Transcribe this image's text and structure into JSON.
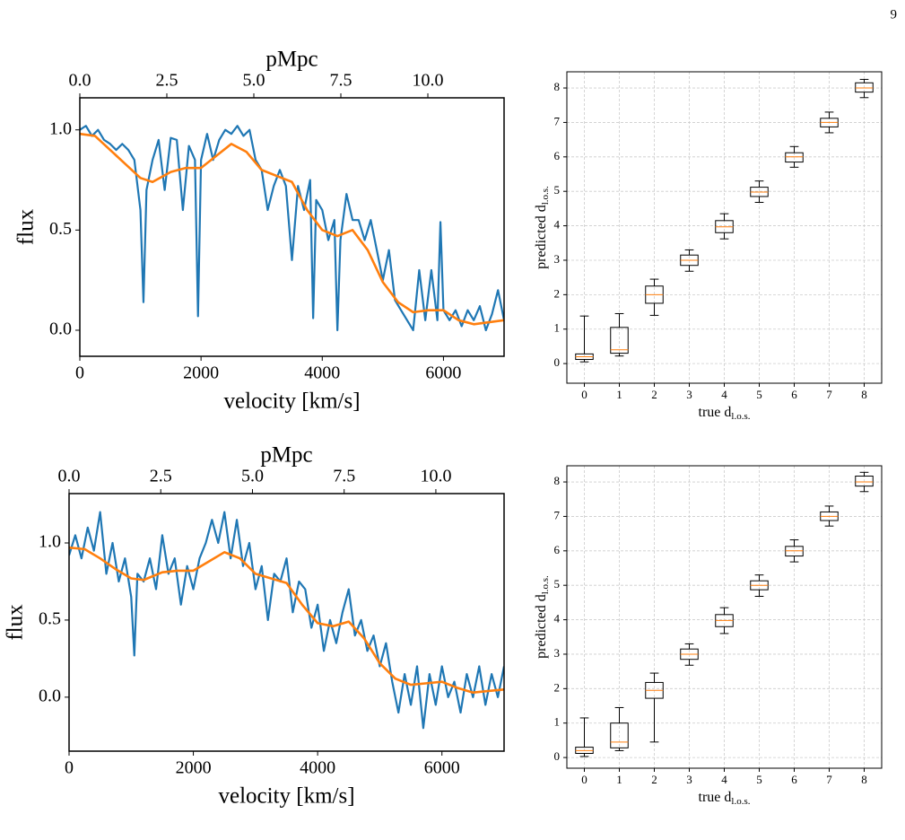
{
  "page_number": "9",
  "chart_data": [
    {
      "type": "line",
      "xlabel": "velocity [km/s]",
      "ylabel": "flux",
      "x2label": "pMpc",
      "xlim": [
        0,
        7000
      ],
      "ylim": [
        -0.13,
        1.16
      ],
      "x2lim": [
        0,
        12.19
      ],
      "xticks": [
        0,
        2000,
        4000,
        6000
      ],
      "yticks": [
        {
          "value": 0,
          "label": "0.0"
        },
        {
          "value": 0.5,
          "label": "0.5"
        },
        {
          "value": 1,
          "label": "1.0"
        }
      ],
      "x2ticks": [
        {
          "value": 0,
          "label": "0.0"
        },
        {
          "value": 2.5,
          "label": "2.5"
        },
        {
          "value": 5,
          "label": "5.0"
        },
        {
          "value": 7.5,
          "label": "7.5"
        },
        {
          "value": 10,
          "label": "10.0"
        }
      ],
      "series": [
        {
          "color": "#1f77b4",
          "x": [
            0,
            100,
            200,
            300,
            400,
            500,
            600,
            700,
            800,
            900,
            1000,
            1050,
            1100,
            1200,
            1300,
            1400,
            1500,
            1600,
            1700,
            1800,
            1900,
            1950,
            2000,
            2100,
            2200,
            2300,
            2400,
            2500,
            2600,
            2700,
            2800,
            2900,
            3000,
            3100,
            3200,
            3300,
            3400,
            3500,
            3600,
            3700,
            3800,
            3850,
            3900,
            4000,
            4100,
            4200,
            4250,
            4300,
            4400,
            4500,
            4600,
            4700,
            4800,
            4900,
            5000,
            5100,
            5200,
            5300,
            5400,
            5500,
            5600,
            5700,
            5800,
            5900,
            5950,
            6000,
            6100,
            6200,
            6300,
            6400,
            6500,
            6600,
            6700,
            6800,
            6900,
            7000
          ],
          "values": [
            1.0,
            1.02,
            0.97,
            1.0,
            0.95,
            0.93,
            0.9,
            0.93,
            0.9,
            0.85,
            0.6,
            0.14,
            0.7,
            0.85,
            0.95,
            0.7,
            0.96,
            0.95,
            0.6,
            0.92,
            0.85,
            0.07,
            0.85,
            0.98,
            0.85,
            0.95,
            1.0,
            0.98,
            1.02,
            0.97,
            1.0,
            0.85,
            0.8,
            0.6,
            0.72,
            0.8,
            0.72,
            0.35,
            0.72,
            0.6,
            0.75,
            0.06,
            0.65,
            0.6,
            0.45,
            0.55,
            0.0,
            0.45,
            0.68,
            0.55,
            0.55,
            0.45,
            0.55,
            0.4,
            0.25,
            0.4,
            0.15,
            0.1,
            0.05,
            0.0,
            0.3,
            0.05,
            0.3,
            0.05,
            0.54,
            0.1,
            0.05,
            0.1,
            0.02,
            0.1,
            0.05,
            0.12,
            0.0,
            0.08,
            0.2,
            0.05
          ]
        },
        {
          "color": "#ff7f0e",
          "x": [
            0,
            250,
            500,
            750,
            1000,
            1200,
            1500,
            1750,
            2000,
            2250,
            2500,
            2750,
            3000,
            3250,
            3500,
            3750,
            4000,
            4250,
            4500,
            4750,
            5000,
            5250,
            5500,
            5750,
            6000,
            6250,
            6500,
            6750,
            7000
          ],
          "values": [
            0.98,
            0.97,
            0.9,
            0.83,
            0.76,
            0.74,
            0.79,
            0.81,
            0.81,
            0.87,
            0.93,
            0.89,
            0.8,
            0.77,
            0.74,
            0.6,
            0.5,
            0.47,
            0.5,
            0.4,
            0.24,
            0.14,
            0.09,
            0.1,
            0.1,
            0.05,
            0.03,
            0.04,
            0.05
          ]
        }
      ]
    },
    {
      "type": "box",
      "xlabel": "true d",
      "xlabel_sub": "l.o.s.",
      "ylabel": "predicted d",
      "ylabel_sub": "l.o.s.",
      "categories": [
        "0",
        "1",
        "2",
        "3",
        "4",
        "5",
        "6",
        "7",
        "8"
      ],
      "ylim": [
        -0.57,
        8.47
      ],
      "yticks": [
        0,
        1,
        2,
        3,
        4,
        5,
        6,
        7,
        8
      ],
      "grid": true,
      "median_color": "#ff7f0e",
      "boxes": [
        {
          "low": 0.05,
          "q1": 0.12,
          "median": 0.2,
          "q3": 0.28,
          "high": 1.38
        },
        {
          "low": 0.22,
          "q1": 0.3,
          "median": 0.4,
          "q3": 1.05,
          "high": 1.45
        },
        {
          "low": 1.4,
          "q1": 1.75,
          "median": 2.0,
          "q3": 2.25,
          "high": 2.45
        },
        {
          "low": 2.68,
          "q1": 2.85,
          "median": 3.0,
          "q3": 3.15,
          "high": 3.3
        },
        {
          "low": 3.62,
          "q1": 3.8,
          "median": 3.97,
          "q3": 4.15,
          "high": 4.35
        },
        {
          "low": 4.68,
          "q1": 4.85,
          "median": 4.98,
          "q3": 5.12,
          "high": 5.3
        },
        {
          "low": 5.7,
          "q1": 5.85,
          "median": 6.0,
          "q3": 6.12,
          "high": 6.3
        },
        {
          "low": 6.7,
          "q1": 6.87,
          "median": 7.0,
          "q3": 7.12,
          "high": 7.3
        },
        {
          "low": 7.72,
          "q1": 7.88,
          "median": 8.0,
          "q3": 8.15,
          "high": 8.25
        }
      ]
    },
    {
      "type": "line",
      "xlabel": "velocity [km/s]",
      "ylabel": "flux",
      "x2label": "pMpc",
      "xlim": [
        0,
        7000
      ],
      "ylim": [
        -0.35,
        1.32
      ],
      "x2lim": [
        0,
        11.86
      ],
      "xticks": [
        0,
        2000,
        4000,
        6000
      ],
      "yticks": [
        {
          "value": 0,
          "label": "0.0"
        },
        {
          "value": 0.5,
          "label": "0.5"
        },
        {
          "value": 1,
          "label": "1.0"
        }
      ],
      "x2ticks": [
        {
          "value": 0,
          "label": "0.0"
        },
        {
          "value": 2.5,
          "label": "2.5"
        },
        {
          "value": 5,
          "label": "5.0"
        },
        {
          "value": 7.5,
          "label": "7.5"
        },
        {
          "value": 10,
          "label": "10.0"
        }
      ],
      "series": [
        {
          "color": "#1f77b4",
          "x": [
            0,
            100,
            200,
            300,
            400,
            500,
            600,
            700,
            800,
            900,
            1000,
            1050,
            1100,
            1200,
            1300,
            1400,
            1500,
            1600,
            1700,
            1800,
            1900,
            2000,
            2100,
            2200,
            2300,
            2400,
            2500,
            2600,
            2700,
            2800,
            2900,
            3000,
            3100,
            3200,
            3300,
            3400,
            3500,
            3600,
            3700,
            3800,
            3900,
            4000,
            4100,
            4200,
            4300,
            4400,
            4500,
            4600,
            4700,
            4800,
            4900,
            5000,
            5100,
            5200,
            5300,
            5400,
            5500,
            5600,
            5700,
            5800,
            5900,
            6000,
            6100,
            6200,
            6300,
            6400,
            6500,
            6600,
            6700,
            6800,
            6900,
            7000
          ],
          "values": [
            0.92,
            1.05,
            0.9,
            1.1,
            0.95,
            1.2,
            0.8,
            1.0,
            0.75,
            0.9,
            0.65,
            0.27,
            0.8,
            0.75,
            0.9,
            0.7,
            1.05,
            0.8,
            0.9,
            0.6,
            0.85,
            0.7,
            0.9,
            1.0,
            1.15,
            1.0,
            1.2,
            0.9,
            1.15,
            0.85,
            1.0,
            0.7,
            0.85,
            0.5,
            0.8,
            0.75,
            0.9,
            0.55,
            0.75,
            0.7,
            0.45,
            0.6,
            0.3,
            0.5,
            0.35,
            0.55,
            0.7,
            0.4,
            0.5,
            0.3,
            0.4,
            0.2,
            0.35,
            0.1,
            -0.1,
            0.15,
            -0.05,
            0.2,
            -0.2,
            0.15,
            -0.05,
            0.2,
            0.0,
            0.1,
            -0.1,
            0.15,
            0.0,
            0.2,
            -0.05,
            0.15,
            0.0,
            0.2
          ]
        },
        {
          "color": "#ff7f0e",
          "x": [
            0,
            250,
            500,
            750,
            1000,
            1200,
            1500,
            1750,
            2000,
            2250,
            2500,
            2750,
            3000,
            3250,
            3500,
            3750,
            4000,
            4250,
            4500,
            4750,
            5000,
            5250,
            5500,
            5750,
            6000,
            6250,
            6500,
            6750,
            7000
          ],
          "values": [
            0.97,
            0.96,
            0.9,
            0.83,
            0.77,
            0.76,
            0.81,
            0.82,
            0.82,
            0.88,
            0.94,
            0.9,
            0.8,
            0.77,
            0.74,
            0.6,
            0.48,
            0.46,
            0.49,
            0.38,
            0.22,
            0.12,
            0.08,
            0.09,
            0.1,
            0.06,
            0.03,
            0.04,
            0.05
          ]
        }
      ]
    },
    {
      "type": "box",
      "xlabel": "true d",
      "xlabel_sub": "l.o.s.",
      "ylabel": "predicted d",
      "ylabel_sub": "l.o.s.",
      "categories": [
        "0",
        "1",
        "2",
        "3",
        "4",
        "5",
        "6",
        "7",
        "8"
      ],
      "ylim": [
        -0.31,
        8.47
      ],
      "yticks": [
        0,
        1,
        2,
        3,
        4,
        5,
        6,
        7,
        8
      ],
      "grid": true,
      "median_color": "#ff7f0e",
      "boxes": [
        {
          "low": 0.03,
          "q1": 0.12,
          "median": 0.2,
          "q3": 0.3,
          "high": 1.15
        },
        {
          "low": 0.2,
          "q1": 0.28,
          "median": 0.45,
          "q3": 1.0,
          "high": 1.45
        },
        {
          "low": 0.45,
          "q1": 1.72,
          "median": 1.95,
          "q3": 2.18,
          "high": 2.45
        },
        {
          "low": 2.68,
          "q1": 2.85,
          "median": 3.0,
          "q3": 3.15,
          "high": 3.3
        },
        {
          "low": 3.6,
          "q1": 3.8,
          "median": 3.98,
          "q3": 4.15,
          "high": 4.35
        },
        {
          "low": 4.68,
          "q1": 4.87,
          "median": 5.0,
          "q3": 5.13,
          "high": 5.3
        },
        {
          "low": 5.68,
          "q1": 5.85,
          "median": 6.0,
          "q3": 6.13,
          "high": 6.32
        },
        {
          "low": 6.72,
          "q1": 6.88,
          "median": 7.0,
          "q3": 7.13,
          "high": 7.3
        },
        {
          "low": 7.72,
          "q1": 7.88,
          "median": 8.0,
          "q3": 8.17,
          "high": 8.28
        }
      ]
    }
  ]
}
